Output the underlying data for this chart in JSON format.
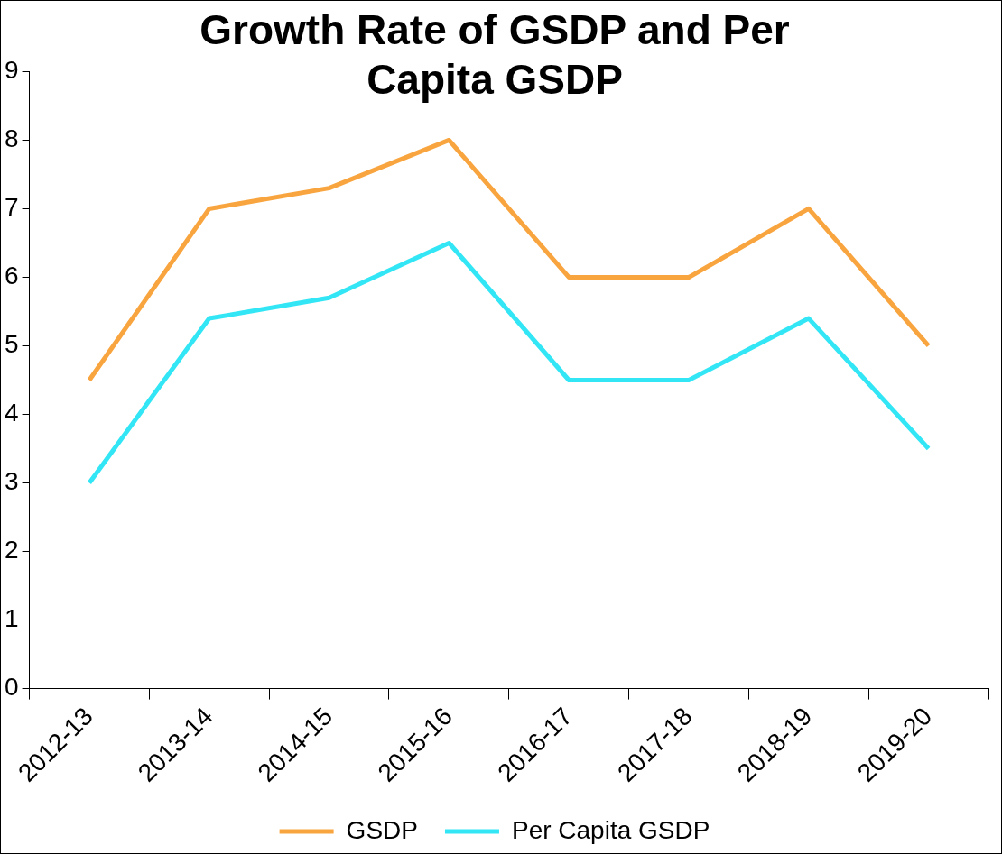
{
  "chart_data": {
    "type": "line",
    "title": "Growth Rate of GSDP and Per Capita GSDP",
    "categories": [
      "2012-13",
      "2013-14",
      "2014-15",
      "2015-16",
      "2016-17",
      "2017-18",
      "2018-19",
      "2019-20"
    ],
    "series": [
      {
        "name": "GSDP",
        "color": "#f9a53f",
        "values": [
          4.5,
          7.0,
          7.3,
          8.0,
          6.0,
          6.0,
          7.0,
          5.0
        ]
      },
      {
        "name": "Per Capita GSDP",
        "color": "#33e6f5",
        "values": [
          3.0,
          5.4,
          5.7,
          6.5,
          4.5,
          4.5,
          5.4,
          3.5
        ]
      }
    ],
    "ylim": [
      0,
      9
    ],
    "yticks": [
      0,
      1,
      2,
      3,
      4,
      5,
      6,
      7,
      8,
      9
    ],
    "grid": false,
    "legend": "bottom",
    "marker": "none",
    "line_style": "solid"
  }
}
